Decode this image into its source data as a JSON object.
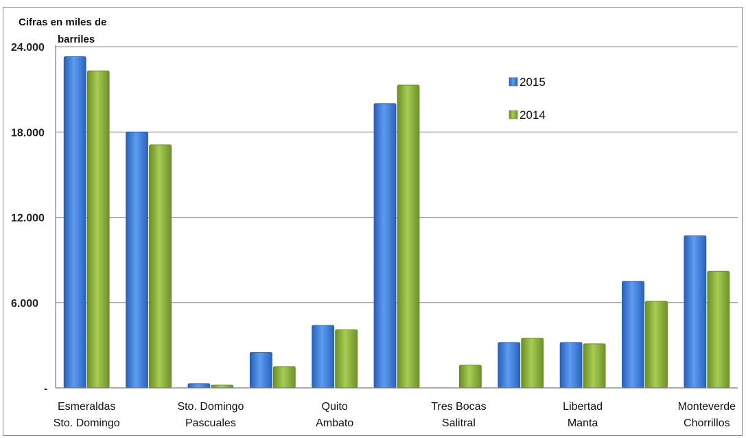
{
  "chart_data": {
    "type": "bar",
    "ylabel": "Cifras en miles de barriles",
    "ylabel_lines": [
      "Cifras en miles de",
      "barriles"
    ],
    "ylim": [
      0,
      24000
    ],
    "yticks": [
      {
        "value": 0,
        "label": "-"
      },
      {
        "value": 6000,
        "label": "6.000"
      },
      {
        "value": 12000,
        "label": "12.000"
      },
      {
        "value": 18000,
        "label": "18.000"
      },
      {
        "value": 24000,
        "label": "24.000"
      }
    ],
    "grid": true,
    "legend_position": "top-right",
    "categories": [
      [
        "Esmeraldas",
        "Sto. Domingo"
      ],
      [
        "",
        ""
      ],
      [
        "Sto. Domingo",
        "Pascuales"
      ],
      [
        "",
        ""
      ],
      [
        "Quito",
        "Ambato"
      ],
      [
        "",
        ""
      ],
      [
        "Tres Bocas",
        "Salitral"
      ],
      [
        "",
        ""
      ],
      [
        "Libertad",
        "Manta"
      ],
      [
        "",
        ""
      ],
      [
        "Monteverde",
        "Chorrillos"
      ]
    ],
    "series": [
      {
        "name": "2015",
        "color": "#3f7fd8",
        "values": [
          23300,
          18000,
          300,
          2500,
          4400,
          20000,
          0,
          3200,
          3200,
          7500,
          10700
        ]
      },
      {
        "name": "2014",
        "color": "#8db33c",
        "values": [
          22300,
          17100,
          200,
          1500,
          4100,
          21300,
          1600,
          3500,
          3100,
          6100,
          8200
        ]
      }
    ]
  }
}
